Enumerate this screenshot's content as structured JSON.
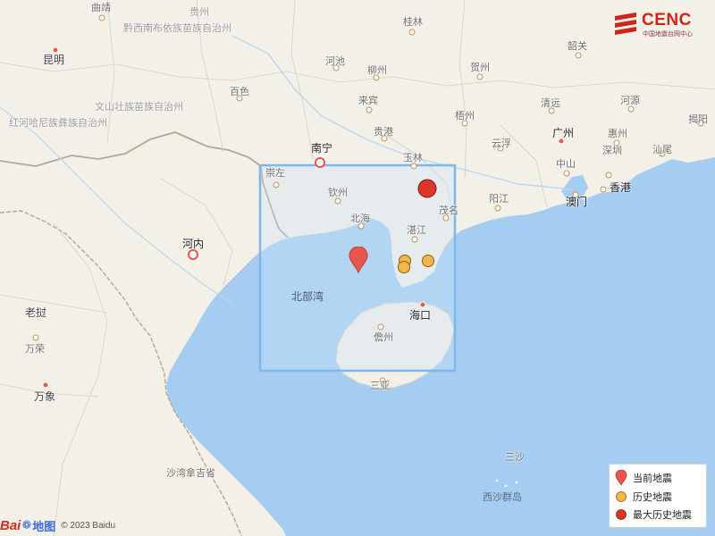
{
  "map": {
    "provinces": [
      {
        "id": "guizhou",
        "name": "贵州"
      },
      {
        "id": "qiannan",
        "name": "黔西南布依族苗族自治州"
      },
      {
        "id": "wenshan",
        "name": "文山壮族苗族自治州"
      },
      {
        "id": "honghe",
        "name": "红河哈尼族彝族自治州"
      },
      {
        "id": "laojie",
        "name": "老挝"
      }
    ],
    "cities": [
      {
        "id": "qujing",
        "name": "曲靖"
      },
      {
        "id": "kunming",
        "name": "昆明"
      },
      {
        "id": "guilin",
        "name": "桂林"
      },
      {
        "id": "hechi",
        "name": "河池"
      },
      {
        "id": "liuzhou",
        "name": "柳州"
      },
      {
        "id": "hezhou",
        "name": "贺州"
      },
      {
        "id": "baise",
        "name": "百色"
      },
      {
        "id": "laibin",
        "name": "来宾"
      },
      {
        "id": "wuzhou",
        "name": "梧州"
      },
      {
        "id": "shaoguan",
        "name": "韶关"
      },
      {
        "id": "qingyuan",
        "name": "清远"
      },
      {
        "id": "heyuan",
        "name": "河源"
      },
      {
        "id": "jieyang",
        "name": "揭阳"
      },
      {
        "id": "guangzhou",
        "name": "广州"
      },
      {
        "id": "huizhou",
        "name": "惠州"
      },
      {
        "id": "shanwei",
        "name": "汕尾"
      },
      {
        "id": "nanning",
        "name": "南宁"
      },
      {
        "id": "guigang",
        "name": "贵港"
      },
      {
        "id": "yunfu",
        "name": "云浮"
      },
      {
        "id": "yulin",
        "name": "玉林"
      },
      {
        "id": "zhongshan",
        "name": "中山"
      },
      {
        "id": "shenzhen",
        "name": "深圳"
      },
      {
        "id": "xianggang",
        "name": "香港"
      },
      {
        "id": "chongzuo",
        "name": "崇左"
      },
      {
        "id": "qinzhou",
        "name": "钦州"
      },
      {
        "id": "yangjiang",
        "name": "阳江"
      },
      {
        "id": "aomen",
        "name": "澳门"
      },
      {
        "id": "maoming",
        "name": "茂名"
      },
      {
        "id": "beihai",
        "name": "北海"
      },
      {
        "id": "hanoi",
        "name": "河内"
      },
      {
        "id": "zhanjiang",
        "name": "湛江"
      },
      {
        "id": "haikou",
        "name": "海口"
      },
      {
        "id": "danzhou",
        "name": "儋州"
      },
      {
        "id": "sanya",
        "name": "三亚"
      },
      {
        "id": "wanrong",
        "name": "万荣"
      },
      {
        "id": "wanxiang",
        "name": "万象"
      },
      {
        "id": "shawanjiji",
        "name": "沙湾拿吉省"
      },
      {
        "id": "sansha",
        "name": "三沙"
      },
      {
        "id": "xisha",
        "name": "西沙群岛"
      }
    ],
    "seas": [
      {
        "id": "beibuwan",
        "name": "北部湾"
      }
    ]
  },
  "colors": {
    "sea": "#a4cdf1",
    "land": "#f3f0e8",
    "region_box": "#7fb6ec",
    "current_quake": "#e8574b",
    "history_quake": "#f5b843",
    "max_history_quake": "#d9372b"
  },
  "logo": {
    "name": "CENC",
    "subtitle": "中国地震台网中心"
  },
  "legend": {
    "current": "当前地震",
    "history": "历史地震",
    "max_history": "最大历史地震"
  },
  "attribution": {
    "brand_a": "Bai",
    "brand_b": "地图",
    "copyright": "© 2023 Baidu"
  }
}
